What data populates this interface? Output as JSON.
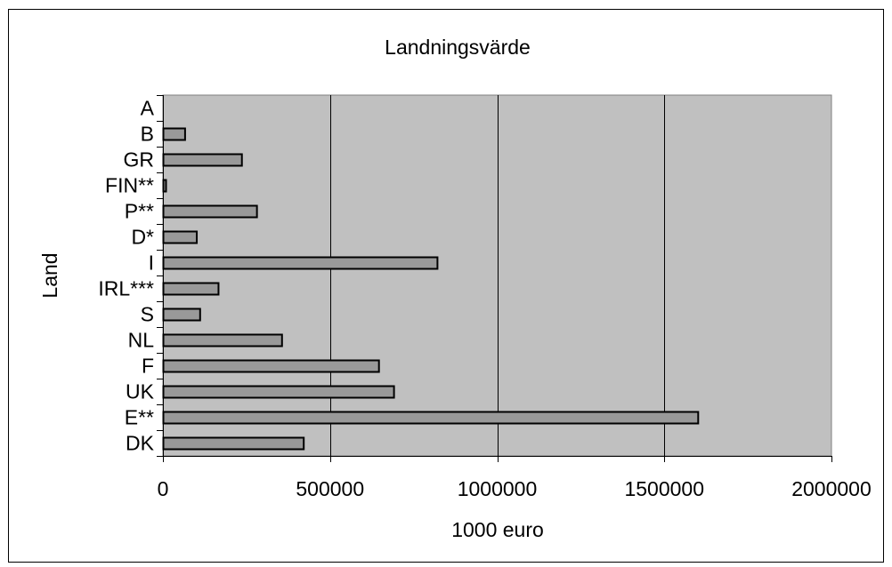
{
  "chart_data": {
    "type": "bar",
    "orientation": "horizontal",
    "title": "Landningsvärde",
    "xlabel": "1000 euro",
    "ylabel": "Land",
    "categories": [
      "DK",
      "E**",
      "UK",
      "F",
      "NL",
      "S",
      "IRL***",
      "I",
      "D*",
      "P**",
      "FIN**",
      "GR",
      "B",
      "A"
    ],
    "values": [
      420000,
      1600000,
      690000,
      645000,
      355000,
      110000,
      165000,
      820000,
      100000,
      280000,
      8000,
      235000,
      65000,
      0
    ],
    "xlim": [
      0,
      2000000
    ],
    "xticks": [
      0,
      500000,
      1000000,
      1500000,
      2000000
    ],
    "xtick_labels": [
      "0",
      "500000",
      "1000000",
      "1500000",
      "2000000"
    ],
    "grid": "vertical",
    "legend": "none",
    "colors": {
      "plot_background": "#c0c0c0",
      "bar_fill": "#999999",
      "bar_stroke": "#000000",
      "gridline": "#000000",
      "frame": "#000000"
    }
  }
}
